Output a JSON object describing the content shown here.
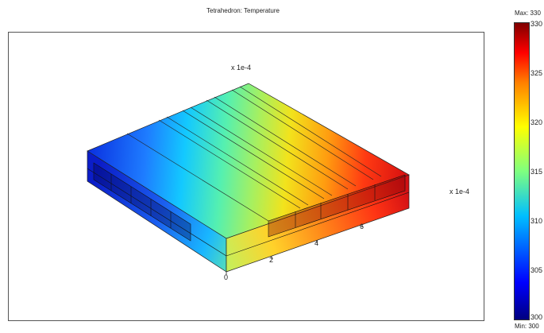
{
  "plot": {
    "title": "Tetrahedron: Temperature",
    "axis_scale_top": "x 1e-4",
    "axis_scale_right": "x 1e-4",
    "x_ticks": [
      "0",
      "2",
      "4",
      "6"
    ]
  },
  "colorbar": {
    "max_label": "Max: 330",
    "min_label": "Min: 300",
    "ticks": [
      "330",
      "325",
      "320",
      "315",
      "310",
      "305",
      "300"
    ],
    "colormap": [
      "#00007f",
      "#0000ff",
      "#00bfff",
      "#7fff7f",
      "#ffff00",
      "#ff7f00",
      "#ff0000",
      "#7f0000"
    ]
  },
  "colors": {
    "frame": "#555555",
    "edge": "#222222"
  }
}
